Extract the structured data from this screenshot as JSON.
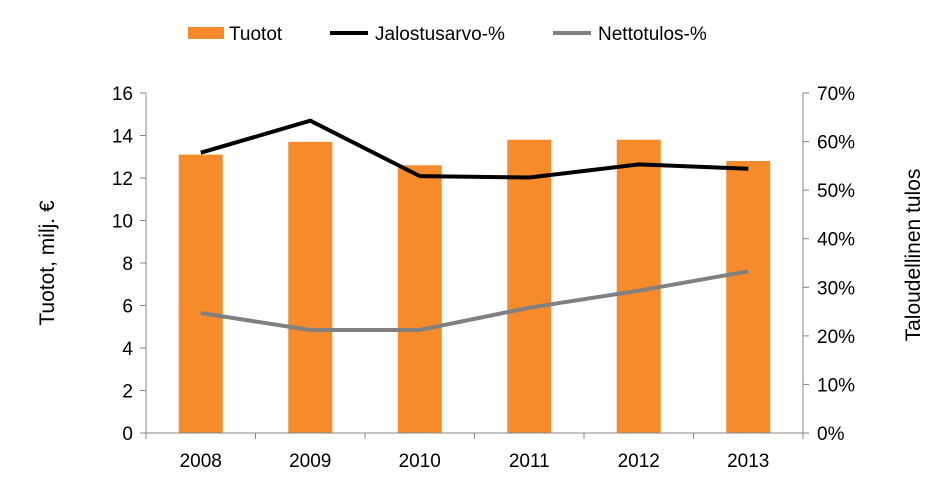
{
  "chart_data": {
    "type": "bar",
    "categories": [
      "2008",
      "2009",
      "2010",
      "2011",
      "2012",
      "2013"
    ],
    "series": [
      {
        "name": "Tuotot",
        "type": "bar",
        "axis": "left",
        "color": "#F58B2A",
        "values": [
          13.1,
          13.7,
          12.6,
          13.8,
          13.8,
          12.8
        ]
      },
      {
        "name": "Jalostusarvo-%",
        "type": "line",
        "axis": "right",
        "color": "#000000",
        "values": [
          57.7,
          64.3,
          52.9,
          52.6,
          55.3,
          54.4
        ]
      },
      {
        "name": "Nettotulos-%",
        "type": "line",
        "axis": "right",
        "color": "#808080",
        "values": [
          24.7,
          21.2,
          21.2,
          25.8,
          29.3,
          33.3
        ]
      }
    ],
    "ylabel": "Tuotot, milj. €",
    "y2label": "Taloudellinen tulos",
    "ylim": [
      0,
      16
    ],
    "yticks": [
      "0",
      "2",
      "4",
      "6",
      "8",
      "10",
      "12",
      "14",
      "16"
    ],
    "y2lim": [
      0,
      70
    ],
    "y2ticks": [
      "0%",
      "10%",
      "20%",
      "30%",
      "40%",
      "50%",
      "60%",
      "70%"
    ],
    "grid": false,
    "legend": "top"
  }
}
